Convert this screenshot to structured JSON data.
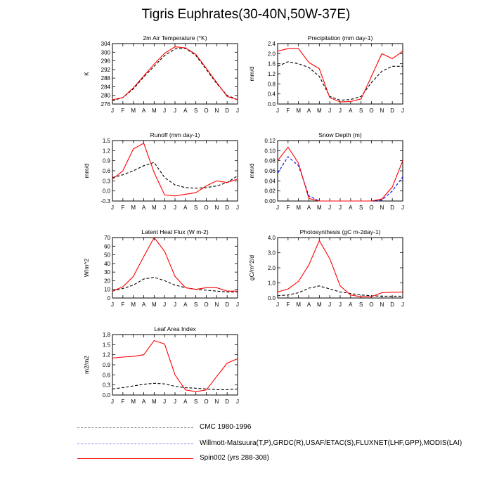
{
  "figure": {
    "title": "Tigris Euphrates(30-40N,50W-37E)"
  },
  "colors": {
    "cmc": "#000000",
    "obs": "#0000ff",
    "spin": "#ff0000"
  },
  "legend": [
    {
      "label": "CMC 1980-1996",
      "color": "#888888",
      "style": "dashed"
    },
    {
      "label": "Willmott-Matsuura(T,P),GRDC(R),USAF/ETAC(S),FLUXNET(LHF,GPP),MODIS(LAI)",
      "color": "#8888ff",
      "style": "dashed"
    },
    {
      "label": "Spin002 (yrs 288-308)",
      "color": "#ff0000",
      "style": "solid"
    }
  ],
  "chart_data": [
    {
      "type": "line",
      "title": "2m Air Temperature (°K)",
      "ylabel": "K",
      "x": [
        "J",
        "F",
        "M",
        "A",
        "M",
        "J",
        "J",
        "A",
        "S",
        "O",
        "N",
        "D",
        "J"
      ],
      "ylim": [
        276,
        304
      ],
      "yticks": [
        276,
        280,
        284,
        288,
        292,
        296,
        300,
        304
      ],
      "series": [
        {
          "name": "CMC 1980-1996",
          "color": "#000000",
          "style": "dashed",
          "values": [
            277.5,
            279.0,
            283.0,
            288.5,
            293.5,
            298.5,
            301.5,
            301.8,
            298.5,
            292.0,
            285.5,
            280.0,
            278.0
          ]
        },
        {
          "name": "Spin002 (yrs 288-308)",
          "color": "#ff0000",
          "style": "solid",
          "values": [
            278.0,
            279.0,
            283.5,
            289.0,
            294.5,
            299.5,
            302.5,
            302.0,
            299.0,
            292.5,
            286.0,
            279.5,
            278.0
          ]
        }
      ]
    },
    {
      "type": "line",
      "title": "Precipitation (mm day-1)",
      "ylabel": "mm/d",
      "x": [
        "J",
        "F",
        "M",
        "A",
        "M",
        "J",
        "J",
        "A",
        "S",
        "O",
        "N",
        "D",
        "J"
      ],
      "ylim": [
        0.0,
        2.4
      ],
      "yticks": [
        "0.0",
        "0.4",
        "0.8",
        "1.2",
        "1.6",
        "2.0",
        "2.4"
      ],
      "series": [
        {
          "name": "CMC 1980-1996",
          "color": "#000000",
          "style": "dashed",
          "values": [
            1.5,
            1.68,
            1.6,
            1.45,
            1.1,
            0.3,
            0.15,
            0.18,
            0.3,
            0.85,
            1.3,
            1.5,
            1.5
          ]
        },
        {
          "name": "Spin002 (yrs 288-308)",
          "color": "#ff0000",
          "style": "solid",
          "values": [
            2.1,
            2.2,
            2.2,
            1.65,
            1.4,
            0.25,
            0.08,
            0.1,
            0.2,
            1.1,
            2.0,
            1.8,
            2.1
          ]
        }
      ]
    },
    {
      "type": "line",
      "title": "Runoff (mm day-1)",
      "ylabel": "mm/d",
      "x": [
        "J",
        "F",
        "M",
        "A",
        "M",
        "J",
        "J",
        "A",
        "S",
        "O",
        "N",
        "D",
        "J"
      ],
      "ylim": [
        -0.3,
        1.5
      ],
      "yticks": [
        "-0.3",
        "0.0",
        "0.3",
        "0.6",
        "0.9",
        "1.2",
        "1.5"
      ],
      "series": [
        {
          "name": "CMC 1980-1996",
          "color": "#000000",
          "style": "dashed",
          "values": [
            0.4,
            0.48,
            0.6,
            0.75,
            0.85,
            0.4,
            0.18,
            0.1,
            0.08,
            0.1,
            0.15,
            0.25,
            0.45
          ]
        },
        {
          "name": "Spin002 (yrs 288-308)",
          "color": "#ff0000",
          "style": "solid",
          "values": [
            0.35,
            0.6,
            1.25,
            1.42,
            0.55,
            -0.12,
            -0.15,
            -0.1,
            -0.05,
            0.15,
            0.3,
            0.25,
            0.35
          ]
        }
      ]
    },
    {
      "type": "line",
      "title": "Snow Depth (m)",
      "ylabel": "mm/d",
      "x": [
        "J",
        "F",
        "M",
        "A",
        "M",
        "J",
        "J",
        "A",
        "S",
        "O",
        "N",
        "D",
        "J"
      ],
      "ylim": [
        0.0,
        0.12
      ],
      "yticks": [
        "0.00",
        "0.02",
        "0.04",
        "0.06",
        "0.08",
        "0.10",
        "0.12"
      ],
      "series": [
        {
          "name": "Willmott-Matsuura(T,P),GRDC(R),USAF/ETAC(S),FLUXNET(LHF,GPP),MODIS(LAI)",
          "color": "#0000ff",
          "style": "dashed",
          "values": [
            0.055,
            0.088,
            0.07,
            0.01,
            0.0,
            0.0,
            0.0,
            0.0,
            0.0,
            0.0,
            0.002,
            0.02,
            0.048
          ]
        },
        {
          "name": "Spin002 (yrs 288-308)",
          "color": "#ff0000",
          "style": "solid",
          "values": [
            0.08,
            0.107,
            0.075,
            0.005,
            0.0,
            0.0,
            0.0,
            0.0,
            0.0,
            0.0,
            0.004,
            0.028,
            0.08
          ]
        }
      ]
    },
    {
      "type": "line",
      "title": "Latent Heat Flux (W m-2)",
      "ylabel": "W/m^2",
      "x": [
        "J",
        "F",
        "M",
        "A",
        "M",
        "J",
        "J",
        "A",
        "S",
        "O",
        "N",
        "D",
        "J"
      ],
      "ylim": [
        0,
        70
      ],
      "yticks": [
        "0",
        "10",
        "20",
        "30",
        "40",
        "50",
        "60",
        "70"
      ],
      "series": [
        {
          "name": "CMC 1980-1996",
          "color": "#000000",
          "style": "dashed",
          "values": [
            8,
            11,
            15,
            22,
            24,
            20,
            15,
            12,
            10,
            9,
            8,
            7,
            7
          ]
        },
        {
          "name": "Spin002 (yrs 288-308)",
          "color": "#ff0000",
          "style": "solid",
          "values": [
            8,
            13,
            25,
            48,
            70,
            54,
            25,
            12,
            10,
            12,
            12,
            8,
            8
          ]
        }
      ]
    },
    {
      "type": "line",
      "title": "Photosynthesis (gC m-2day-1)",
      "ylabel": "gC/m^2/d",
      "x": [
        "J",
        "F",
        "M",
        "A",
        "M",
        "J",
        "J",
        "A",
        "S",
        "O",
        "N",
        "D",
        "J"
      ],
      "ylim": [
        0.0,
        4.0
      ],
      "yticks": [
        "0.0",
        "1.0",
        "2.0",
        "3.0",
        "4.0"
      ],
      "series": [
        {
          "name": "CMC 1980-1996",
          "color": "#000000",
          "style": "dashed",
          "values": [
            0.15,
            0.2,
            0.35,
            0.65,
            0.8,
            0.6,
            0.4,
            0.3,
            0.2,
            0.15,
            0.12,
            0.12,
            0.12
          ]
        },
        {
          "name": "Spin002 (yrs 288-308)",
          "color": "#ff0000",
          "style": "solid",
          "values": [
            0.4,
            0.6,
            1.1,
            2.2,
            3.8,
            2.6,
            0.8,
            0.2,
            0.08,
            0.1,
            0.35,
            0.38,
            0.4
          ]
        }
      ]
    },
    {
      "type": "line",
      "title": "Leaf Area Index",
      "ylabel": "m2/m2",
      "x": [
        "J",
        "F",
        "M",
        "A",
        "M",
        "J",
        "J",
        "A",
        "S",
        "O",
        "N",
        "D",
        "J"
      ],
      "ylim": [
        0.0,
        1.8
      ],
      "yticks": [
        "0.0",
        "0.3",
        "0.6",
        "0.9",
        "1.2",
        "1.5",
        "1.8"
      ],
      "series": [
        {
          "name": "CMC 1980-1996",
          "color": "#000000",
          "style": "dashed",
          "values": [
            0.18,
            0.22,
            0.27,
            0.32,
            0.35,
            0.33,
            0.26,
            0.22,
            0.2,
            0.18,
            0.16,
            0.16,
            0.18
          ]
        },
        {
          "name": "Spin002 (yrs 288-308)",
          "color": "#ff0000",
          "style": "solid",
          "values": [
            1.1,
            1.13,
            1.15,
            1.2,
            1.62,
            1.52,
            0.6,
            0.15,
            0.1,
            0.15,
            0.55,
            0.95,
            1.08
          ]
        }
      ]
    }
  ]
}
